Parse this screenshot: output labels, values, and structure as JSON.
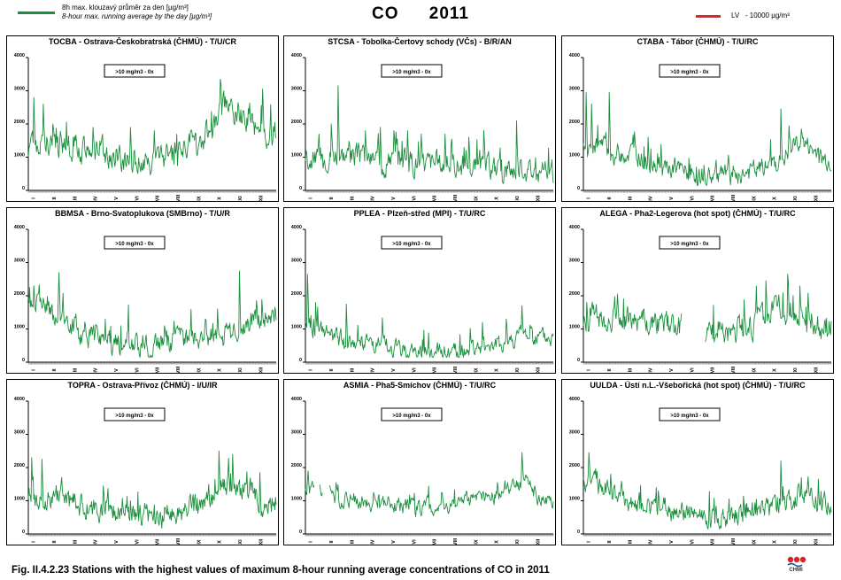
{
  "legend_left": {
    "line1": "8h max. klouzavý průměr za den [µg/m³]",
    "line2": "8-hour max. running average by the day  [µg/m³]",
    "color": "#1a8f3c"
  },
  "title": {
    "pollutant": "CO",
    "year": "2011"
  },
  "legend_right": {
    "label": "LV",
    "value": "- 10000 µg/m³",
    "color": "#e8251c"
  },
  "caption": "Fig. II.4.2.23  Stations with the highest values of maximum 8-hour running average concentrations of CO in 2011",
  "logo_text": "CHMI",
  "chart_data": [
    {
      "type": "line",
      "title": "TOCBA - Ostrava-Českobratrská (ČHMÚ) - T/U/CR",
      "annotation": ">10 mg/m3 - 0x",
      "ylim": [
        0,
        4000
      ],
      "yticks": [
        "0",
        "1000",
        "2000",
        "3000",
        "4000"
      ],
      "months": [
        "I",
        "II",
        "III",
        "IV",
        "V",
        "VI",
        "VII",
        "VIII",
        "IX",
        "X",
        "XI",
        "XII"
      ],
      "series": [
        {
          "profile": [
            1300,
            1450,
            1250,
            1150,
            1000,
            800,
            850,
            1300,
            1550,
            2500,
            2100,
            1700
          ],
          "noise": 330,
          "spikes": [
            [
              8,
              2800
            ],
            [
              22,
              2600
            ],
            [
              36,
              2000
            ],
            [
              95,
              1900
            ],
            [
              150,
              1900
            ],
            [
              185,
              1800
            ],
            [
              282,
              3350
            ],
            [
              344,
              3050
            ]
          ],
          "dropouts": []
        }
      ]
    },
    {
      "type": "line",
      "title": "STCSA - Tobolka-Čertovy schody (VČs) - B/R/AN",
      "annotation": ">10 mg/m3 - 0x",
      "ylim": [
        0,
        4000
      ],
      "yticks": [
        "0",
        "1000",
        "2000",
        "3000",
        "4000"
      ],
      "months": [
        "I",
        "II",
        "III",
        "IV",
        "V",
        "VI",
        "VII",
        "VIII",
        "IX",
        "X",
        "XI",
        "XII"
      ],
      "series": [
        {
          "profile": [
            1000,
            1150,
            1000,
            900,
            900,
            850,
            800,
            750,
            700,
            650,
            700,
            500
          ],
          "noise": 300,
          "spikes": [
            [
              48,
              3150
            ],
            [
              38,
              2000
            ],
            [
              88,
              1800
            ],
            [
              110,
              1900
            ],
            [
              130,
              1800
            ],
            [
              150,
              1800
            ],
            [
              170,
              1700
            ],
            [
              205,
              1700
            ],
            [
              240,
              1600
            ],
            [
              262,
              1800
            ],
            [
              310,
              2100
            ]
          ],
          "dropouts": []
        }
      ]
    },
    {
      "type": "line",
      "title": "CTABA - Tábor (ČHMÚ) - T/U/RC",
      "annotation": ">10 mg/m3 - 0x",
      "ylim": [
        0,
        4000
      ],
      "yticks": [
        "0",
        "1000",
        "2000",
        "3000",
        "4000"
      ],
      "months": [
        "I",
        "II",
        "III",
        "IV",
        "V",
        "VI",
        "VII",
        "VIII",
        "IX",
        "X",
        "XI",
        "XII"
      ],
      "series": [
        {
          "profile": [
            1400,
            1150,
            1100,
            800,
            550,
            450,
            400,
            450,
            600,
            850,
            1500,
            900
          ],
          "noise": 260,
          "spikes": [
            [
              4,
              2950
            ],
            [
              12,
              2600
            ],
            [
              38,
              2950
            ],
            [
              95,
              1600
            ],
            [
              290,
              2450
            ],
            [
              302,
              1950
            ],
            [
              320,
              1850
            ]
          ],
          "dropouts": []
        }
      ]
    },
    {
      "type": "line",
      "title": "BBMSA - Brno-Svatoplukova (SMBrno) - T/U/R",
      "annotation": ">10 mg/m3 - 0x",
      "ylim": [
        0,
        4000
      ],
      "yticks": [
        "0",
        "1000",
        "2000",
        "3000",
        "4000"
      ],
      "months": [
        "I",
        "II",
        "III",
        "IV",
        "V",
        "VI",
        "VII",
        "VIII",
        "IX",
        "X",
        "XI",
        "XII"
      ],
      "series": [
        {
          "profile": [
            1800,
            1200,
            950,
            750,
            600,
            400,
            500,
            650,
            750,
            800,
            1200,
            1500
          ],
          "noise": 300,
          "spikes": [
            [
              8,
              2300
            ],
            [
              45,
              2700
            ],
            [
              200,
              1100
            ],
            [
              260,
              1300
            ],
            [
              310,
              2750
            ],
            [
              335,
              1850
            ]
          ],
          "dropouts": []
        }
      ]
    },
    {
      "type": "line",
      "title": "PPLEA - Plzeň-střed (MPI) - T/U/RC",
      "annotation": ">10 mg/m3 - 0x",
      "ylim": [
        0,
        4000
      ],
      "yticks": [
        "0",
        "1000",
        "2000",
        "3000",
        "4000"
      ],
      "months": [
        "I",
        "II",
        "III",
        "IV",
        "V",
        "VI",
        "VII",
        "VIII",
        "IX",
        "X",
        "XI",
        "XII"
      ],
      "series": [
        {
          "profile": [
            1000,
            700,
            600,
            500,
            350,
            300,
            250,
            300,
            450,
            550,
            850,
            700
          ],
          "noise": 220,
          "spikes": [
            [
              3,
              2650
            ],
            [
              15,
              1800
            ],
            [
              60,
              1750
            ],
            [
              260,
              1200
            ],
            [
              295,
              1300
            ],
            [
              318,
              1700
            ]
          ],
          "dropouts": []
        }
      ]
    },
    {
      "type": "line",
      "title": "ALEGA - Pha2-Legerova (hot spot) (ČHMÚ) - T/U/RC",
      "annotation": ">10 mg/m3 - 0x",
      "ylim": [
        0,
        4000
      ],
      "yticks": [
        "0",
        "1000",
        "2000",
        "3000",
        "4000"
      ],
      "months": [
        "I",
        "II",
        "III",
        "IV",
        "V",
        "VI",
        "VII",
        "VIII",
        "IX",
        "X",
        "XI",
        "XII"
      ],
      "series": [
        {
          "profile": [
            1300,
            1400,
            1300,
            1200,
            1000,
            850,
            800,
            950,
            1200,
            1650,
            1600,
            1100
          ],
          "noise": 320,
          "spikes": [
            [
              5,
              1800
            ],
            [
              50,
              2050
            ],
            [
              130,
              1400
            ],
            [
              268,
              2450
            ],
            [
              300,
              2650
            ],
            [
              318,
              2300
            ]
          ],
          "dropouts": [
            [
              145,
              158
            ],
            [
              160,
              178
            ]
          ]
        }
      ]
    },
    {
      "type": "line",
      "title": "TOPRA - Ostrava-Přívoz (ČHMÚ) - I/U/IR",
      "annotation": ">10 mg/m3 - 0x",
      "ylim": [
        0,
        4000
      ],
      "yticks": [
        "0",
        "1000",
        "2000",
        "3000",
        "4000"
      ],
      "months": [
        "I",
        "II",
        "III",
        "IV",
        "V",
        "VI",
        "VII",
        "VIII",
        "IX",
        "X",
        "XI",
        "XII"
      ],
      "series": [
        {
          "profile": [
            1100,
            1050,
            850,
            750,
            650,
            550,
            550,
            650,
            850,
            1450,
            1400,
            900
          ],
          "noise": 300,
          "spikes": [
            [
              5,
              2300
            ],
            [
              20,
              2250
            ],
            [
              48,
              1500
            ],
            [
              110,
              1450
            ],
            [
              150,
              1000
            ],
            [
              280,
              2500
            ],
            [
              300,
              2400
            ],
            [
              340,
              1850
            ]
          ],
          "dropouts": []
        }
      ]
    },
    {
      "type": "line",
      "title": "ASMIA - Pha5-Smíchov (ČHMÚ) - T/U/RC",
      "annotation": ">10 mg/m3 - 0x",
      "ylim": [
        0,
        4000
      ],
      "yticks": [
        "0",
        "1000",
        "2000",
        "3000",
        "4000"
      ],
      "months": [
        "I",
        "II",
        "III",
        "IV",
        "V",
        "VI",
        "VII",
        "VIII",
        "IX",
        "X",
        "XI",
        "XII"
      ],
      "series": [
        {
          "profile": [
            1300,
            1100,
            1000,
            950,
            850,
            800,
            800,
            950,
            1100,
            1200,
            1600,
            1000
          ],
          "noise": 200,
          "spikes": [
            [
              4,
              1900
            ],
            [
              45,
              1550
            ],
            [
              100,
              1250
            ],
            [
              200,
              1250
            ],
            [
              282,
              1550
            ],
            [
              318,
              2450
            ]
          ],
          "dropouts": [
            [
              14,
              20
            ],
            [
              26,
              34
            ]
          ]
        }
      ]
    },
    {
      "type": "line",
      "title": "UULDA - Ústí n.L.-Všebořická (hot spot) (ČHMÚ) - T/U/RC",
      "annotation": ">10 mg/m3 - 0x",
      "ylim": [
        0,
        4000
      ],
      "yticks": [
        "0",
        "1000",
        "2000",
        "3000",
        "4000"
      ],
      "months": [
        "I",
        "II",
        "III",
        "IV",
        "V",
        "VI",
        "VII",
        "VIII",
        "IX",
        "X",
        "XI",
        "XII"
      ],
      "series": [
        {
          "profile": [
            1500,
            1200,
            1000,
            800,
            700,
            550,
            500,
            550,
            750,
            950,
            1200,
            950
          ],
          "noise": 270,
          "spikes": [
            [
              8,
              2450
            ],
            [
              40,
              1800
            ],
            [
              110,
              1300
            ],
            [
              290,
              2200
            ],
            [
              320,
              1700
            ],
            [
              345,
              1650
            ]
          ],
          "dropouts": []
        }
      ]
    }
  ]
}
